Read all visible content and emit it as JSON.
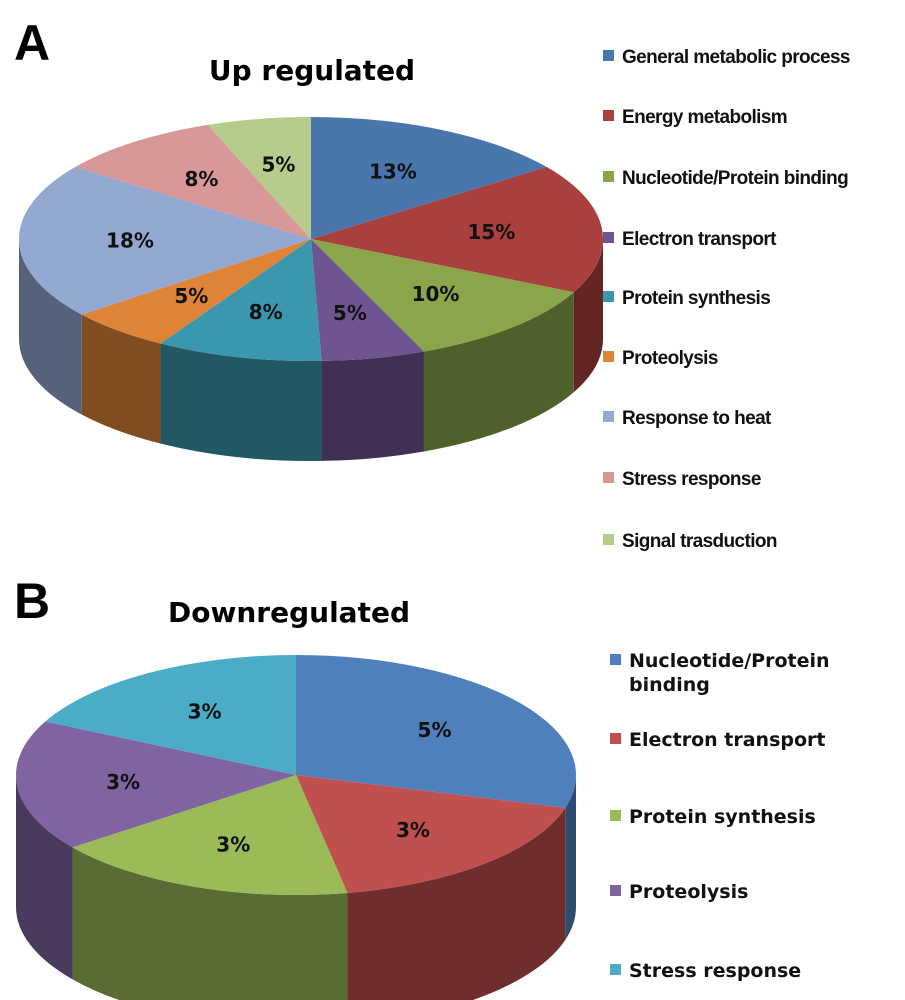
{
  "chart_data": [
    {
      "type": "pie",
      "panel": "A",
      "title": "Up regulated",
      "categories": [
        "General metabolic process",
        "Energy metabolism",
        "Nucleotide/Protein binding",
        "Electron transport",
        "Protein synthesis",
        "Proteolysis",
        "Response to heat",
        "Stress response",
        "Signal trasduction"
      ],
      "values": [
        13,
        15,
        10,
        5,
        8,
        5,
        18,
        8,
        5
      ],
      "labels": [
        "13%",
        "15%",
        "10%",
        "5%",
        "8%",
        "5%",
        "18%",
        "8%",
        "5%"
      ],
      "colors": [
        "#4a76ae",
        "#a9403e",
        "#8aa54a",
        "#6e5590",
        "#3a97ad",
        "#df8336",
        "#94a9d1",
        "#d89897",
        "#b6cc8c"
      ],
      "legend_position": "right",
      "style": "3d-tilted"
    },
    {
      "type": "pie",
      "panel": "B",
      "title": "Downregulated",
      "categories": [
        "Nucleotide/Protein binding",
        "Electron transport",
        "Protein synthesis",
        "Proteolysis",
        "Stress response"
      ],
      "values": [
        5,
        3,
        3,
        3,
        3
      ],
      "labels": [
        "5%",
        "3%",
        "3%",
        "3%",
        "3%"
      ],
      "colors": [
        "#4f80bd",
        "#c0504d",
        "#9bbb59",
        "#8064a2",
        "#4bacc6"
      ],
      "legend_position": "right",
      "style": "3d-tilted"
    }
  ]
}
